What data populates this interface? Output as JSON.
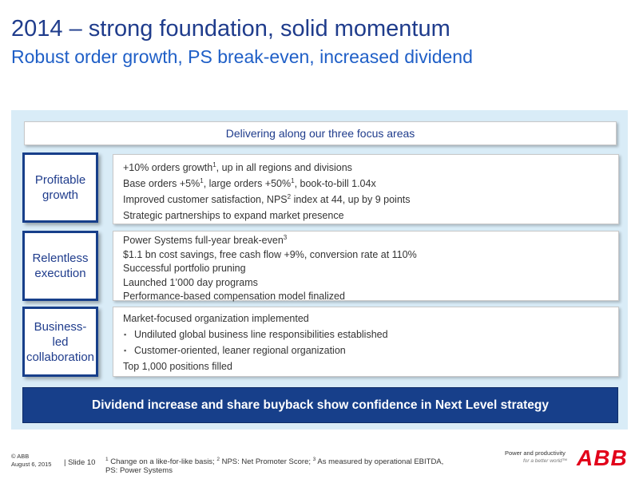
{
  "header": {
    "title": "2014 – strong foundation, solid momentum",
    "subtitle": "Robust order growth, PS break-even, increased dividend"
  },
  "banner": "Delivering along our three focus areas",
  "areas": [
    {
      "label_lines": [
        "Profitable",
        "growth"
      ],
      "lines": [
        {
          "text": "+10% orders growth",
          "sup": "1",
          "after": ", up in all regions and divisions"
        },
        {
          "text": "Base orders +5%",
          "sup": "1",
          "after": ", large orders +50%",
          "sup2": "1",
          "after2": ", book-to-bill 1.04x"
        },
        {
          "text": "Improved customer satisfaction, NPS",
          "sup": "2",
          "after": " index at 44, up by 9 points"
        },
        {
          "text": "Strategic partnerships to expand market presence"
        }
      ]
    },
    {
      "label_lines": [
        "Relentless",
        "execution"
      ],
      "lines": [
        {
          "text": "Power Systems full-year break-even",
          "sup": "3"
        },
        {
          "text": "$1.1 bn cost savings, free cash flow +9%, conversion rate at 110%"
        },
        {
          "text": "Successful portfolio pruning"
        },
        {
          "text": "Launched 1’000 day programs"
        },
        {
          "text": "Performance-based compensation model finalized"
        }
      ]
    },
    {
      "label_lines": [
        "Business-",
        "led",
        "collaboration"
      ],
      "lines": [
        {
          "text": "Market-focused organization implemented"
        },
        {
          "text": "Undiluted global business line responsibilities established",
          "bullet": "▪"
        },
        {
          "text": "Customer-oriented, leaner regional organization",
          "bullet": "▪"
        },
        {
          "text": "Top 1,000 positions filled"
        }
      ]
    }
  ],
  "bottom_bar": "Dividend increase and share buyback show confidence in Next Level strategy",
  "footer": {
    "copyright": "© ABB",
    "date": "August 6, 2015",
    "slide": "| Slide 10",
    "note_parts": [
      {
        "sup": "1"
      },
      {
        "text": " Change on a like-for-like basis; "
      },
      {
        "sup": "2"
      },
      {
        "text": " NPS: Net Promoter Score; "
      },
      {
        "sup": "3"
      },
      {
        "text": " As measured by operational EBITDA,"
      }
    ],
    "note_line2": "PS: Power Systems",
    "tagline": "Power and productivity",
    "tagline2": "for a better world™",
    "logo": "ABB"
  },
  "colors": {
    "title": "#1f3c8c",
    "subtitle": "#1f5fc7",
    "panel_bg": "#d9ecf7",
    "bar_bg": "#173f8a",
    "logo_red": "#e2001a"
  }
}
